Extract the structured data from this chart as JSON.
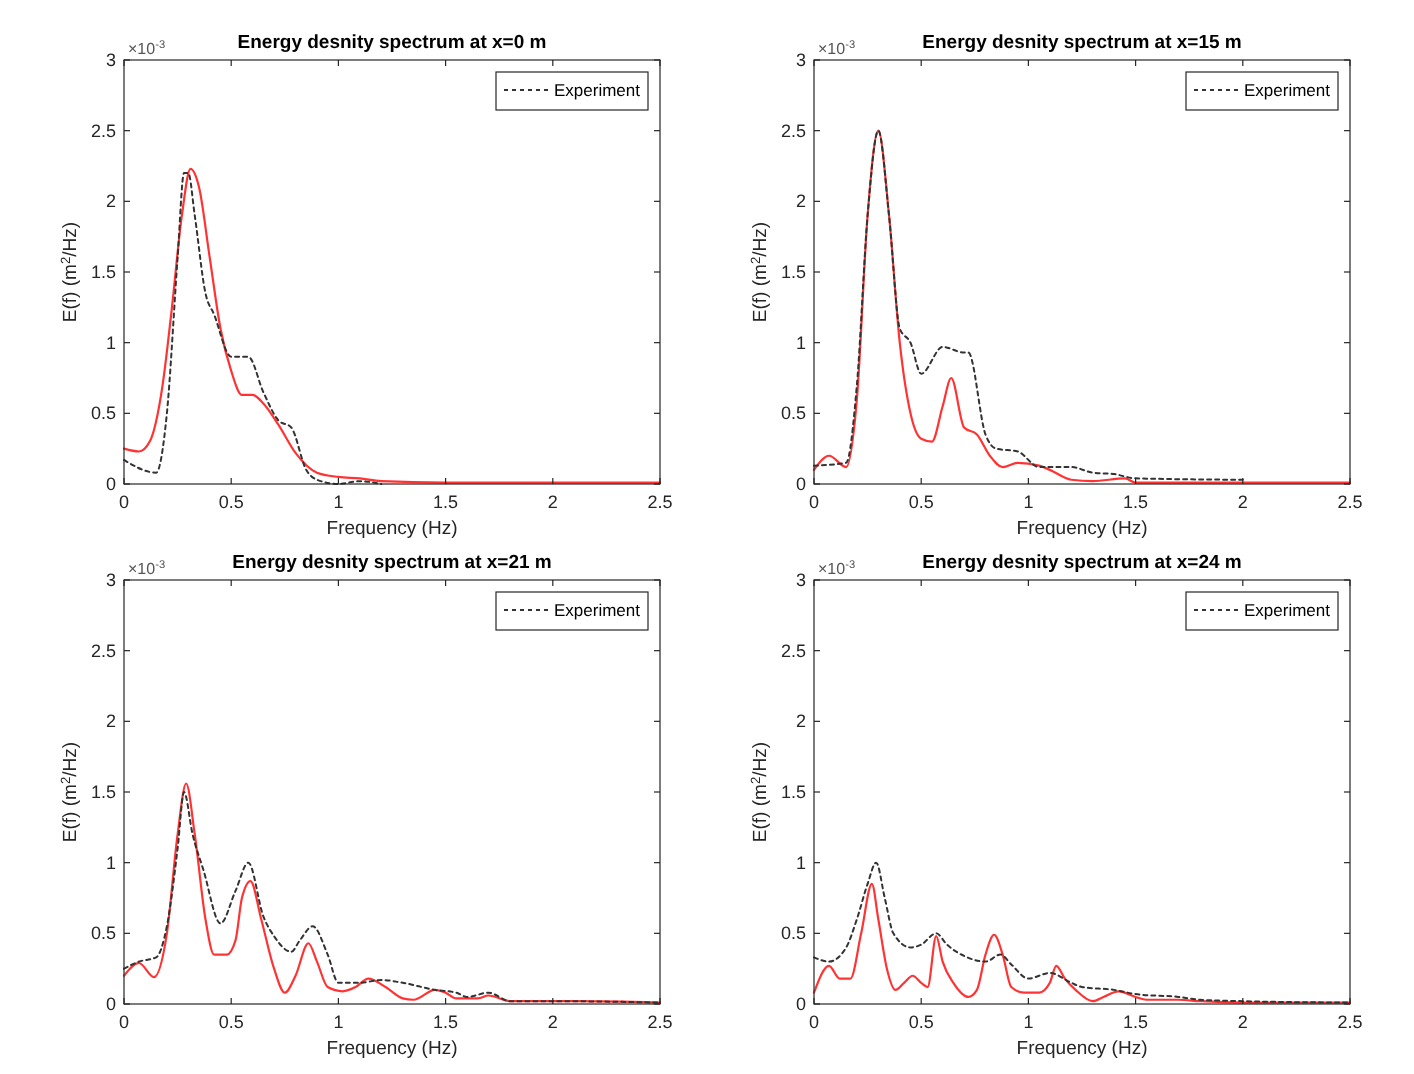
{
  "chart_data": [
    {
      "type": "line",
      "title": "Energy desnity spectrum at x=0 m",
      "xlabel": "Frequency (Hz)",
      "ylabel": "E(f) (m$^{2}$/Hz)",
      "annotations": [
        "×10$^{-3}$"
      ],
      "xlim": [
        0,
        2.5
      ],
      "ylim": [
        0,
        3
      ],
      "xticks": [
        0,
        0.5,
        1,
        1.5,
        2,
        2.5
      ],
      "yticks": [
        0,
        0.5,
        1,
        1.5,
        2,
        2.5,
        3
      ],
      "legend": "top right",
      "grid": false,
      "marker": "none",
      "series": [
        {
          "name": "Experiment",
          "color": "#333333",
          "line_style": "dotted",
          "x": [
            0,
            0.15,
            0.2,
            0.25,
            0.28,
            0.3,
            0.33,
            0.38,
            0.42,
            0.5,
            0.58,
            0.65,
            0.72,
            0.78,
            0.85,
            0.9,
            1.0,
            1.1,
            1.2
          ],
          "values": [
            0.17,
            0.08,
            0.5,
            1.6,
            2.2,
            2.2,
            1.9,
            1.35,
            1.2,
            0.9,
            0.9,
            0.65,
            0.45,
            0.4,
            0.1,
            0.03,
            0,
            0.02,
            0
          ]
        },
        {
          "color": "#ff3333",
          "line_style": "solid",
          "x": [
            0,
            0.07,
            0.12,
            0.18,
            0.22,
            0.27,
            0.31,
            0.35,
            0.4,
            0.45,
            0.5,
            0.55,
            0.6,
            0.65,
            0.72,
            0.8,
            0.9,
            1.0,
            1.1,
            1.2,
            1.5,
            2.5
          ],
          "values": [
            0.25,
            0.23,
            0.3,
            0.7,
            1.2,
            1.9,
            2.23,
            2.1,
            1.6,
            1.1,
            0.8,
            0.63,
            0.63,
            0.57,
            0.42,
            0.22,
            0.08,
            0.05,
            0.04,
            0.02,
            0.01,
            0.01
          ]
        }
      ]
    },
    {
      "type": "line",
      "title": "Energy desnity spectrum at x=15 m",
      "xlabel": "Frequency (Hz)",
      "ylabel": "E(f) (m$^{2}$/Hz)",
      "annotations": [
        "×10$^{-3}$"
      ],
      "xlim": [
        0,
        2.5
      ],
      "ylim": [
        0,
        3
      ],
      "xticks": [
        0,
        0.5,
        1,
        1.5,
        2,
        2.5
      ],
      "yticks": [
        0,
        0.5,
        1,
        1.5,
        2,
        2.5,
        3
      ],
      "legend": "top right",
      "grid": false,
      "marker": "none",
      "series": [
        {
          "name": "Experiment",
          "color": "#333333",
          "line_style": "dotted",
          "x": [
            0,
            0.15,
            0.2,
            0.25,
            0.3,
            0.35,
            0.4,
            0.45,
            0.5,
            0.6,
            0.7,
            0.72,
            0.8,
            0.85,
            0.95,
            1.05,
            1.2,
            1.3,
            1.4,
            1.5,
            2.0
          ],
          "values": [
            0.13,
            0.15,
            0.7,
            1.9,
            2.5,
            1.9,
            1.1,
            1.0,
            0.78,
            0.97,
            0.93,
            0.93,
            0.35,
            0.25,
            0.23,
            0.12,
            0.12,
            0.08,
            0.07,
            0.04,
            0.03
          ]
        },
        {
          "color": "#ff3333",
          "line_style": "solid",
          "x": [
            0,
            0.07,
            0.15,
            0.2,
            0.25,
            0.3,
            0.35,
            0.4,
            0.45,
            0.5,
            0.55,
            0.6,
            0.64,
            0.7,
            0.76,
            0.82,
            0.88,
            0.95,
            1.05,
            1.1,
            1.2,
            1.3,
            1.45,
            1.5,
            2.5
          ],
          "values": [
            0.1,
            0.2,
            0.12,
            0.6,
            1.9,
            2.5,
            1.9,
            1.0,
            0.5,
            0.32,
            0.3,
            0.55,
            0.75,
            0.4,
            0.35,
            0.2,
            0.12,
            0.15,
            0.13,
            0.1,
            0.03,
            0.02,
            0.04,
            0.01,
            0.01
          ]
        }
      ]
    },
    {
      "type": "line",
      "title": "Energy desnity spectrum at x=21 m",
      "xlabel": "Frequency (Hz)",
      "ylabel": "E(f) (m$^{2}$/Hz)",
      "annotations": [
        "×10$^{-3}$"
      ],
      "xlim": [
        0,
        2.5
      ],
      "ylim": [
        0,
        3
      ],
      "xticks": [
        0,
        0.5,
        1,
        1.5,
        2,
        2.5
      ],
      "yticks": [
        0,
        0.5,
        1,
        1.5,
        2,
        2.5,
        3
      ],
      "legend": "top right",
      "grid": false,
      "marker": "none",
      "series": [
        {
          "name": "Experiment",
          "color": "#333333",
          "line_style": "dotted",
          "x": [
            0,
            0.07,
            0.15,
            0.2,
            0.25,
            0.28,
            0.32,
            0.37,
            0.45,
            0.52,
            0.58,
            0.65,
            0.7,
            0.78,
            0.82,
            0.88,
            0.95,
            1.0,
            1.1,
            1.2,
            1.3,
            1.45,
            1.55,
            1.6,
            1.7,
            1.8,
            2.0,
            2.5
          ],
          "values": [
            0.25,
            0.3,
            0.33,
            0.55,
            1.1,
            1.5,
            1.2,
            0.95,
            0.57,
            0.8,
            1.0,
            0.62,
            0.48,
            0.37,
            0.45,
            0.55,
            0.35,
            0.15,
            0.15,
            0.17,
            0.15,
            0.1,
            0.08,
            0.05,
            0.08,
            0.02,
            0.02,
            0.01
          ]
        },
        {
          "color": "#ff3333",
          "line_style": "solid",
          "x": [
            0,
            0.07,
            0.14,
            0.2,
            0.25,
            0.29,
            0.33,
            0.38,
            0.42,
            0.48,
            0.52,
            0.55,
            0.59,
            0.64,
            0.7,
            0.75,
            0.8,
            0.86,
            0.9,
            0.95,
            1.02,
            1.08,
            1.14,
            1.22,
            1.3,
            1.35,
            1.45,
            1.5,
            1.55,
            1.65,
            1.7,
            1.8,
            2.0,
            2.1,
            2.5
          ],
          "values": [
            0.2,
            0.29,
            0.19,
            0.5,
            1.2,
            1.56,
            1.2,
            0.6,
            0.35,
            0.35,
            0.45,
            0.75,
            0.87,
            0.6,
            0.25,
            0.08,
            0.2,
            0.43,
            0.3,
            0.12,
            0.09,
            0.12,
            0.18,
            0.12,
            0.04,
            0.03,
            0.1,
            0.08,
            0.04,
            0.04,
            0.06,
            0.02,
            0.02,
            0.02,
            0.01
          ]
        }
      ]
    },
    {
      "type": "line",
      "title": "Energy desnity spectrum at x=24 m",
      "xlabel": "Frequency (Hz)",
      "ylabel": "E(f) (m$^{2}$/Hz)",
      "annotations": [
        "×10$^{-3}$"
      ],
      "xlim": [
        0,
        2.5
      ],
      "ylim": [
        0,
        3
      ],
      "xticks": [
        0,
        0.5,
        1,
        1.5,
        2,
        2.5
      ],
      "yticks": [
        0,
        0.5,
        1,
        1.5,
        2,
        2.5,
        3
      ],
      "legend": "top right",
      "grid": false,
      "marker": "none",
      "series": [
        {
          "name": "Experiment",
          "color": "#333333",
          "line_style": "dotted",
          "x": [
            0,
            0.07,
            0.15,
            0.2,
            0.25,
            0.29,
            0.33,
            0.37,
            0.45,
            0.5,
            0.57,
            0.62,
            0.7,
            0.8,
            0.87,
            0.92,
            1.0,
            1.1,
            1.2,
            1.25,
            1.4,
            1.5,
            1.7,
            1.8,
            2.0,
            2.5
          ],
          "values": [
            0.33,
            0.3,
            0.4,
            0.6,
            0.85,
            1.0,
            0.75,
            0.5,
            0.4,
            0.42,
            0.5,
            0.42,
            0.34,
            0.3,
            0.35,
            0.28,
            0.18,
            0.22,
            0.15,
            0.12,
            0.1,
            0.07,
            0.05,
            0.03,
            0.02,
            0.01
          ]
        },
        {
          "color": "#ff3333",
          "line_style": "solid",
          "x": [
            0,
            0.07,
            0.12,
            0.17,
            0.22,
            0.27,
            0.3,
            0.34,
            0.38,
            0.42,
            0.46,
            0.5,
            0.53,
            0.57,
            0.6,
            0.65,
            0.72,
            0.76,
            0.8,
            0.84,
            0.88,
            0.92,
            0.98,
            1.05,
            1.1,
            1.13,
            1.17,
            1.22,
            1.3,
            1.35,
            1.42,
            1.5,
            1.55,
            1.7,
            1.8,
            2.0,
            2.5
          ],
          "values": [
            0.08,
            0.27,
            0.18,
            0.18,
            0.5,
            0.85,
            0.6,
            0.25,
            0.1,
            0.15,
            0.2,
            0.15,
            0.12,
            0.48,
            0.3,
            0.15,
            0.05,
            0.1,
            0.35,
            0.49,
            0.35,
            0.12,
            0.08,
            0.08,
            0.15,
            0.27,
            0.18,
            0.1,
            0.02,
            0.05,
            0.09,
            0.05,
            0.03,
            0.03,
            0.02,
            0.01,
            0.01
          ]
        }
      ]
    }
  ]
}
